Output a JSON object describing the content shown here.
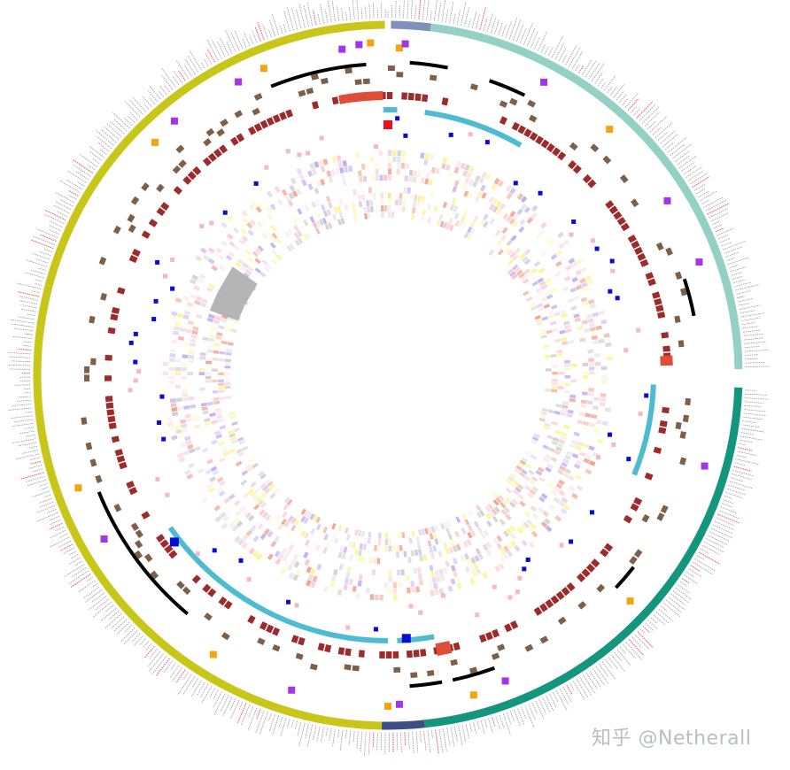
{
  "watermark": "知乎 @Netherall",
  "colors": {
    "clade_yellow": "#c9c61a",
    "clade_slate": "#8090b8",
    "clade_mint": "#94d1c5",
    "clade_teal": "#13957e",
    "clade_navy": "#3d4f86",
    "ring_darkred": "#9e2a2b",
    "ring_brown": "#7e5f49",
    "ring_black": "#000000",
    "ring_cyan": "#4dbbd1",
    "ring_orange_red": "#e04d36",
    "marker_purple": "#a335e8",
    "marker_orange": "#f7a30f",
    "marker_blue": "#0b0bd6",
    "marker_pink": "#f7b7c7",
    "marker_red": "#e8111b",
    "heat_red": "#e8735a",
    "heat_purple": "#9d87e8",
    "heat_yellow": "#f7f05a",
    "heat_grey": "#b5b5b5",
    "leaf_label": "#333333",
    "leaf_label_highlight": "#e8475f"
  },
  "tracks": [
    {
      "name": "tip-labels",
      "type": "text-ring"
    },
    {
      "name": "clade-ring",
      "type": "colored-arc"
    },
    {
      "name": "marker-ring-outer",
      "type": "squares"
    },
    {
      "name": "black-arcs",
      "type": "arc"
    },
    {
      "name": "brown-blocks",
      "type": "bars"
    },
    {
      "name": "darkred-ring",
      "type": "bars"
    },
    {
      "name": "cyan-arcs",
      "type": "arc"
    },
    {
      "name": "blue-pink-markers",
      "type": "squares"
    },
    {
      "name": "heatmap-outer",
      "type": "heatmap"
    },
    {
      "name": "heatmap-inner",
      "type": "heatmap"
    }
  ]
}
